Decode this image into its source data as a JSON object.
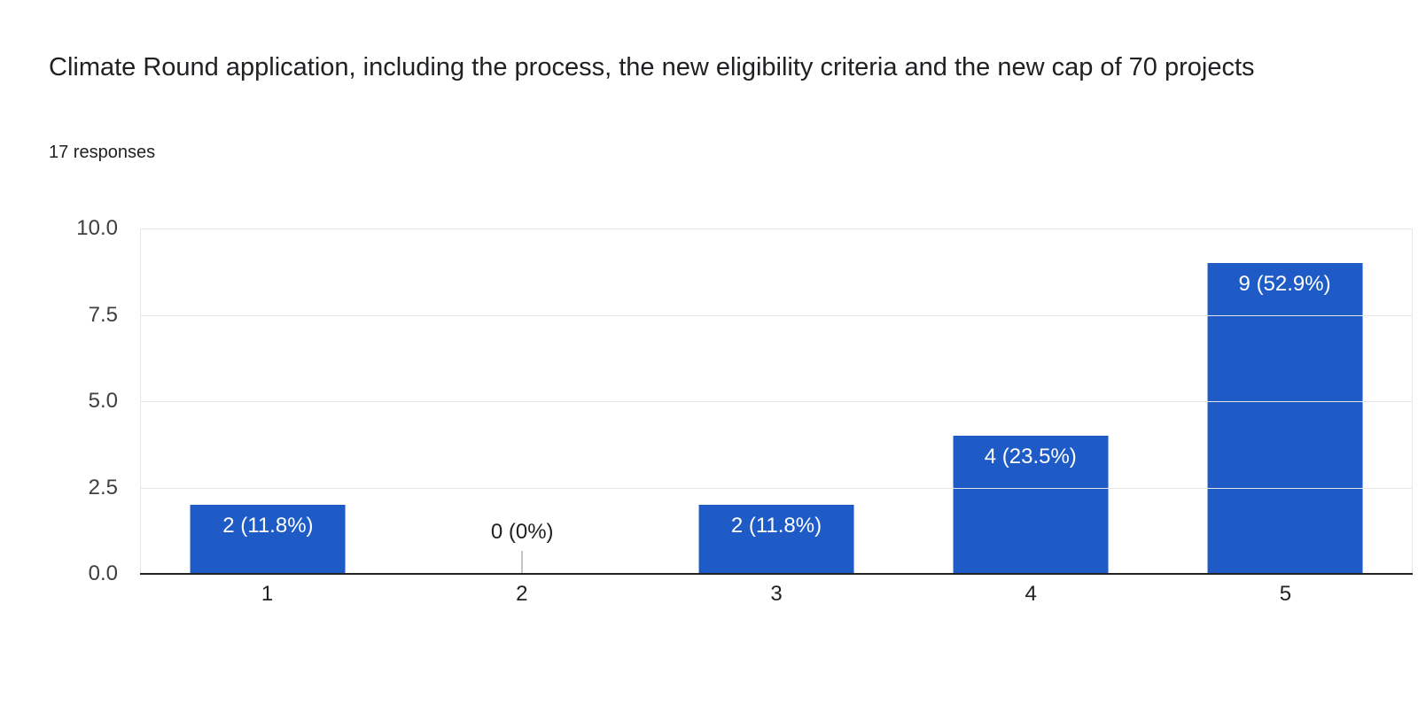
{
  "header": {
    "title": "Climate Round application, including the process, the new eligibility criteria and the new cap of 70 projects",
    "responses_count": "17 responses"
  },
  "chart_data": {
    "type": "bar",
    "title": "Climate Round application, including the process, the new eligibility criteria and the new cap of 70 projects",
    "subtitle": "17 responses",
    "total_responses": 17,
    "categories": [
      "1",
      "2",
      "3",
      "4",
      "5"
    ],
    "values": [
      2,
      0,
      2,
      4,
      9
    ],
    "percentages": [
      11.8,
      0,
      11.8,
      23.5,
      52.9
    ],
    "bar_labels": [
      "2 (11.8%)",
      "0 (0%)",
      "2 (11.8%)",
      "4 (23.5%)",
      "9 (52.9%)"
    ],
    "xlabel": "",
    "ylabel": "",
    "ylim": [
      0,
      10
    ],
    "ytick_labels": [
      "0.0",
      "2.5",
      "5.0",
      "7.5",
      "10.0"
    ],
    "grid": true,
    "legend": "none",
    "colors": {
      "bar": "#1e5bc6",
      "bar_label": "#ffffff",
      "zero_label": "#202124",
      "zero_tick": "#c4c4c4",
      "gridline": "#e6e6e6",
      "axis_line": "#212121",
      "tick_label": "#3c4043",
      "title_text": "#202124"
    }
  }
}
